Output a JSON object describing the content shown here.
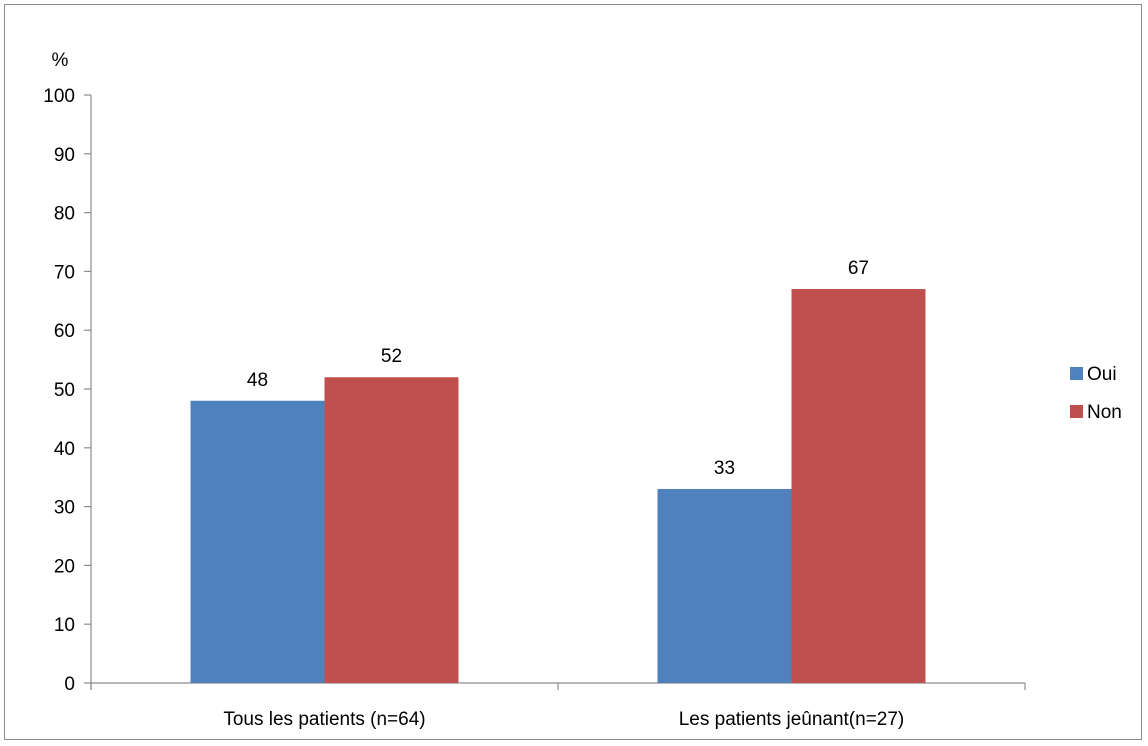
{
  "chart_data": {
    "type": "bar",
    "ylabel": "%",
    "ylim": [
      0,
      100
    ],
    "y_ticks": [
      0,
      10,
      20,
      30,
      40,
      50,
      60,
      70,
      80,
      90,
      100
    ],
    "categories": [
      "Tous les patients (n=64)",
      "Les patients jeûnant(n=27)"
    ],
    "series": [
      {
        "name": "Oui",
        "values": [
          48,
          33
        ],
        "color": "#4f81bd"
      },
      {
        "name": "Non",
        "values": [
          52,
          67
        ],
        "color": "#c0504d"
      }
    ],
    "data_labels": true,
    "grid": false,
    "legend_position": "right"
  }
}
